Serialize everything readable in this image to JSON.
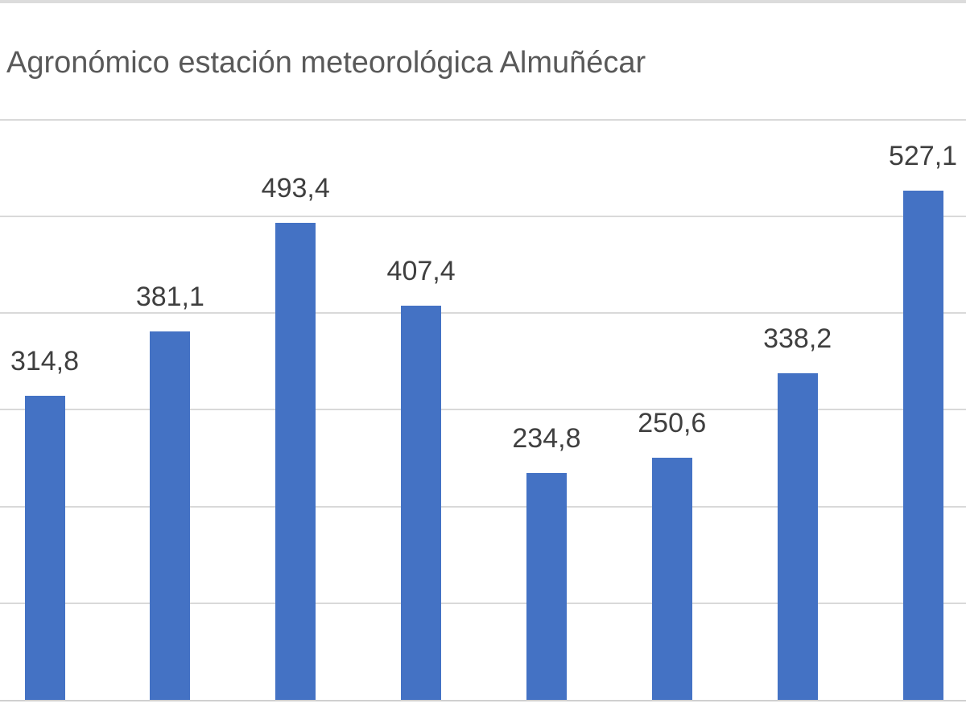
{
  "chart_data": {
    "type": "bar",
    "title": "Agronómico estación meteorológica Almuñécar",
    "values": [
      314.8,
      381.1,
      493.4,
      407.4,
      234.8,
      250.6,
      338.2,
      527.1
    ],
    "data_labels": [
      "314,8",
      "381,1",
      "493,4",
      "407,4",
      "234,8",
      "250,6",
      "338,2",
      "527,1"
    ],
    "categories": [],
    "xlabel": "",
    "ylabel": "",
    "ylim": [
      0,
      600
    ],
    "gridline_step": 100,
    "grid": "horizontal",
    "legend": "none",
    "axis_tick_labels": "cropped-not-visible",
    "colors": {
      "bar": "#4472C4",
      "gridline": "#D9D9D9",
      "baseline": "#D0D0D0",
      "top_border": "#DCDCDC",
      "title_text": "#595959",
      "data_label_text": "#3F3F3F",
      "background": "#FFFFFF"
    }
  }
}
